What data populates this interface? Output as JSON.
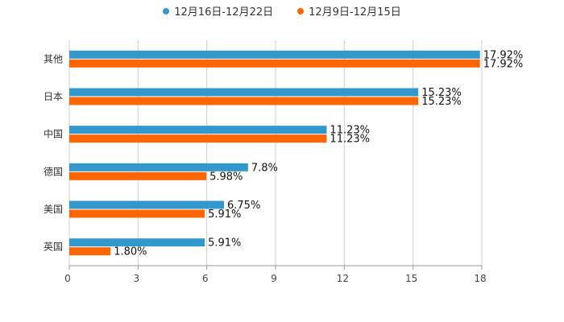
{
  "chart_data": {
    "type": "bar",
    "orientation": "horizontal",
    "categories": [
      "其他",
      "日本",
      "中国",
      "德国",
      "美国",
      "英国"
    ],
    "series": [
      {
        "name": "12月16日-12月22日",
        "color": "#3399cc",
        "values": [
          17.92,
          15.23,
          11.23,
          7.8,
          6.75,
          5.91
        ],
        "labels": [
          "17.92%",
          "15.23%",
          "11.23%",
          "7.8%",
          "6.75%",
          "5.91%"
        ]
      },
      {
        "name": "12月9日-12月15日",
        "color": "#ff6600",
        "values": [
          17.92,
          15.23,
          11.23,
          5.98,
          5.91,
          1.8
        ],
        "labels": [
          "17.92%",
          "15.23%",
          "11.23%",
          "5.98%",
          "5.91%",
          "1.80%"
        ]
      }
    ],
    "xlim": [
      0,
      18
    ],
    "xticks": [
      "0",
      "3",
      "6",
      "9",
      "12",
      "15",
      "18"
    ],
    "grid": true,
    "legend_position": "top-center"
  }
}
